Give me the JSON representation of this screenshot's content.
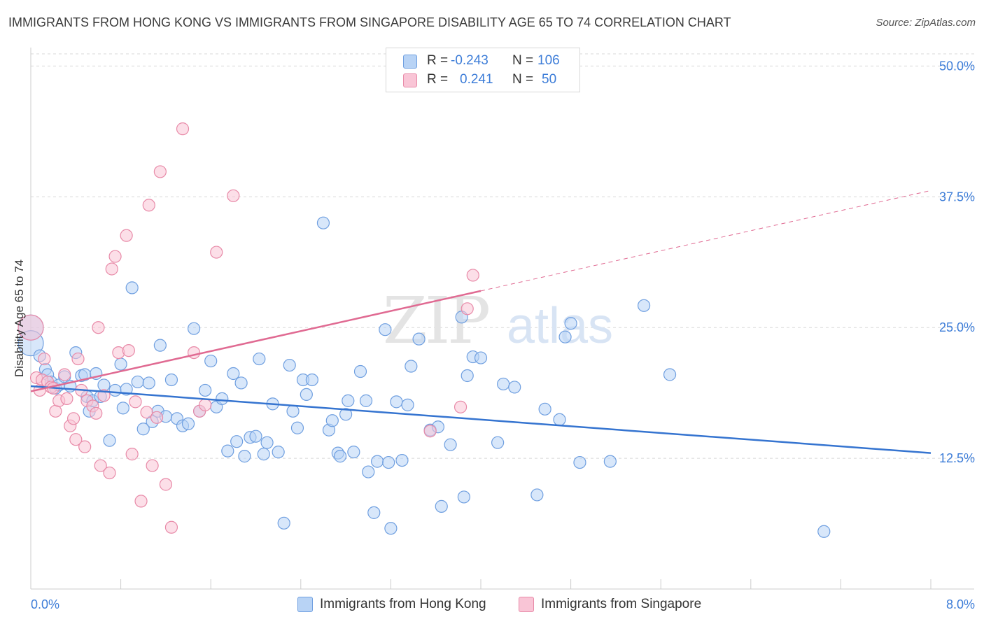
{
  "header": {
    "title": "IMMIGRANTS FROM HONG KONG VS IMMIGRANTS FROM SINGAPORE DISABILITY AGE 65 TO 74 CORRELATION CHART",
    "source": "Source: ZipAtlas.com"
  },
  "watermark": {
    "zip": "ZIP",
    "atlas": "atlas"
  },
  "legend": {
    "r_label": "R =",
    "n_label": "N =",
    "rows": [
      {
        "r": "-0.243",
        "n": "106",
        "color": "#b8d3f5",
        "border": "#6f9fe0"
      },
      {
        "r": "0.241",
        "n": "50",
        "color": "#f9c5d6",
        "border": "#e88aa8"
      }
    ]
  },
  "bottom_legend": [
    {
      "label": "Immigrants from Hong Kong",
      "color": "#b8d3f5",
      "border": "#6f9fe0"
    },
    {
      "label": "Immigrants from Singapore",
      "color": "#f9c5d6",
      "border": "#e88aa8"
    }
  ],
  "chart_data": {
    "type": "scatter",
    "title": "IMMIGRANTS FROM HONG KONG VS IMMIGRANTS FROM SINGAPORE DISABILITY AGE 65 TO 74 CORRELATION CHART",
    "xlabel": "",
    "ylabel": "Disability Age 65 to 74",
    "xlim": [
      0,
      8
    ],
    "ylim": [
      0,
      51.5
    ],
    "x_tick_labels": [
      "0.0%",
      "8.0%"
    ],
    "y_ticks": [
      12.5,
      25.0,
      37.5,
      50.0
    ],
    "y_tick_labels": [
      "12.5%",
      "25.0%",
      "37.5%",
      "50.0%"
    ],
    "grid": true,
    "legend_position": "top-center",
    "colors": {
      "hk": "#6f9fe0",
      "hk_fill": "#b8d3f5",
      "hk_line": "#3574d0",
      "sg": "#e88aa8",
      "sg_fill": "#f9c5d6",
      "sg_line": "#e06a92",
      "tick_label": "#3d7dd8",
      "grid": "#d8d8d8"
    },
    "series": [
      {
        "name": "Immigrants from Hong Kong",
        "color": "#6f9fe0",
        "points": [
          [
            0.0,
            25.0
          ],
          [
            0.0,
            23.5
          ],
          [
            0.08,
            22.3
          ],
          [
            0.13,
            21.0
          ],
          [
            0.15,
            20.5
          ],
          [
            0.18,
            19.8
          ],
          [
            0.22,
            19.2
          ],
          [
            0.25,
            19.5
          ],
          [
            0.3,
            20.3
          ],
          [
            0.35,
            19.4
          ],
          [
            0.4,
            22.6
          ],
          [
            0.45,
            20.4
          ],
          [
            0.48,
            20.5
          ],
          [
            0.5,
            18.4
          ],
          [
            0.52,
            17.0
          ],
          [
            0.55,
            18.0
          ],
          [
            0.58,
            20.6
          ],
          [
            0.62,
            18.4
          ],
          [
            0.65,
            19.5
          ],
          [
            0.7,
            14.2
          ],
          [
            0.75,
            19.0
          ],
          [
            0.8,
            21.5
          ],
          [
            0.82,
            17.3
          ],
          [
            0.85,
            19.1
          ],
          [
            0.9,
            28.8
          ],
          [
            0.95,
            19.8
          ],
          [
            1.0,
            15.3
          ],
          [
            1.05,
            19.7
          ],
          [
            1.08,
            16.0
          ],
          [
            1.13,
            17.0
          ],
          [
            1.15,
            23.3
          ],
          [
            1.2,
            16.5
          ],
          [
            1.25,
            20.0
          ],
          [
            1.3,
            16.3
          ],
          [
            1.35,
            15.6
          ],
          [
            1.4,
            15.8
          ],
          [
            1.45,
            24.9
          ],
          [
            1.5,
            17.0
          ],
          [
            1.55,
            19.0
          ],
          [
            1.6,
            21.8
          ],
          [
            1.65,
            17.4
          ],
          [
            1.7,
            18.2
          ],
          [
            1.75,
            13.2
          ],
          [
            1.8,
            20.6
          ],
          [
            1.83,
            14.1
          ],
          [
            1.87,
            19.7
          ],
          [
            1.9,
            12.7
          ],
          [
            1.95,
            14.5
          ],
          [
            2.0,
            14.6
          ],
          [
            2.03,
            22.0
          ],
          [
            2.07,
            12.9
          ],
          [
            2.1,
            14.0
          ],
          [
            2.15,
            17.7
          ],
          [
            2.2,
            13.1
          ],
          [
            2.25,
            6.3
          ],
          [
            2.3,
            21.4
          ],
          [
            2.33,
            17.0
          ],
          [
            2.37,
            15.4
          ],
          [
            2.42,
            20.0
          ],
          [
            2.45,
            18.6
          ],
          [
            2.5,
            20.0
          ],
          [
            2.6,
            35.0
          ],
          [
            2.65,
            15.2
          ],
          [
            2.68,
            16.1
          ],
          [
            2.73,
            13.0
          ],
          [
            2.75,
            12.7
          ],
          [
            2.8,
            16.7
          ],
          [
            2.82,
            18.0
          ],
          [
            2.87,
            13.1
          ],
          [
            2.93,
            20.8
          ],
          [
            2.98,
            18.0
          ],
          [
            3.0,
            11.2
          ],
          [
            3.05,
            7.3
          ],
          [
            3.08,
            12.2
          ],
          [
            3.15,
            24.8
          ],
          [
            3.18,
            12.1
          ],
          [
            3.2,
            5.8
          ],
          [
            3.25,
            17.9
          ],
          [
            3.3,
            12.3
          ],
          [
            3.35,
            17.6
          ],
          [
            3.38,
            21.3
          ],
          [
            3.45,
            23.9
          ],
          [
            3.55,
            15.2
          ],
          [
            3.62,
            15.5
          ],
          [
            3.65,
            7.9
          ],
          [
            3.73,
            13.8
          ],
          [
            3.83,
            26.0
          ],
          [
            3.85,
            8.8
          ],
          [
            3.88,
            20.4
          ],
          [
            3.93,
            22.2
          ],
          [
            4.0,
            22.1
          ],
          [
            4.15,
            14.0
          ],
          [
            4.2,
            19.6
          ],
          [
            4.3,
            19.3
          ],
          [
            4.5,
            9.0
          ],
          [
            4.57,
            17.2
          ],
          [
            4.7,
            16.2
          ],
          [
            4.75,
            24.1
          ],
          [
            4.8,
            25.4
          ],
          [
            4.88,
            12.1
          ],
          [
            5.15,
            12.2
          ],
          [
            5.45,
            27.1
          ],
          [
            5.68,
            20.5
          ],
          [
            7.05,
            5.5
          ]
        ]
      },
      {
        "name": "Immigrants from Singapore",
        "color": "#e88aa8",
        "points": [
          [
            0.0,
            25.0
          ],
          [
            0.05,
            20.2
          ],
          [
            0.08,
            19.0
          ],
          [
            0.1,
            20.0
          ],
          [
            0.12,
            22.0
          ],
          [
            0.15,
            19.8
          ],
          [
            0.18,
            19.3
          ],
          [
            0.2,
            19.2
          ],
          [
            0.22,
            17.0
          ],
          [
            0.25,
            18.0
          ],
          [
            0.3,
            20.5
          ],
          [
            0.32,
            18.2
          ],
          [
            0.35,
            15.6
          ],
          [
            0.38,
            16.3
          ],
          [
            0.4,
            14.3
          ],
          [
            0.42,
            22.0
          ],
          [
            0.45,
            19.0
          ],
          [
            0.48,
            13.6
          ],
          [
            0.5,
            18.0
          ],
          [
            0.55,
            17.5
          ],
          [
            0.58,
            16.8
          ],
          [
            0.6,
            25.0
          ],
          [
            0.62,
            11.8
          ],
          [
            0.65,
            18.5
          ],
          [
            0.7,
            11.1
          ],
          [
            0.72,
            30.6
          ],
          [
            0.75,
            31.8
          ],
          [
            0.78,
            22.6
          ],
          [
            0.85,
            33.8
          ],
          [
            0.87,
            22.8
          ],
          [
            0.9,
            12.9
          ],
          [
            0.93,
            17.9
          ],
          [
            0.98,
            8.4
          ],
          [
            1.03,
            16.9
          ],
          [
            1.05,
            36.7
          ],
          [
            1.08,
            11.8
          ],
          [
            1.12,
            16.4
          ],
          [
            1.15,
            39.9
          ],
          [
            1.2,
            10.0
          ],
          [
            1.25,
            5.9
          ],
          [
            1.35,
            44.0
          ],
          [
            1.45,
            22.6
          ],
          [
            1.5,
            17.0
          ],
          [
            1.55,
            17.6
          ],
          [
            1.65,
            32.2
          ],
          [
            1.8,
            37.6
          ],
          [
            3.55,
            15.1
          ],
          [
            3.82,
            17.4
          ],
          [
            3.88,
            26.8
          ],
          [
            3.93,
            30.0
          ]
        ]
      }
    ],
    "trend_lines": [
      {
        "series": "Immigrants from Hong Kong",
        "x": [
          0,
          8
        ],
        "y": [
          19.4,
          13.0
        ],
        "style": "solid"
      },
      {
        "series": "Immigrants from Singapore",
        "x": [
          0,
          4.0
        ],
        "y": [
          18.9,
          28.5
        ],
        "style": "solid"
      },
      {
        "series": "Immigrants from Singapore",
        "x": [
          4.0,
          8
        ],
        "y": [
          28.5,
          38.1
        ],
        "style": "dashed"
      }
    ]
  }
}
